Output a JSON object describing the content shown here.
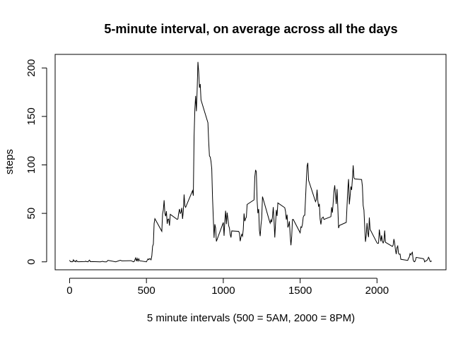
{
  "chart_data": {
    "type": "line",
    "title": "5-minute interval, on average across all the days",
    "xlabel": "5 minute intervals (500 = 5AM, 2000 = 8PM)",
    "ylabel": "steps",
    "xlim": [
      -94,
      2449
    ],
    "ylim": [
      -8.2,
      214
    ],
    "xticks": [
      0,
      500,
      1000,
      1500,
      2000
    ],
    "yticks": [
      0,
      50,
      100,
      150,
      200
    ],
    "grid": false,
    "series": [
      {
        "points": [
          [
            0,
            1.7
          ],
          [
            5,
            0.3
          ],
          [
            10,
            0.1
          ],
          [
            15,
            0.2
          ],
          [
            20,
            0.1
          ],
          [
            25,
            2.1
          ],
          [
            30,
            0.5
          ],
          [
            35,
            0.9
          ],
          [
            40,
            0
          ],
          [
            45,
            1.5
          ],
          [
            50,
            0.3
          ],
          [
            55,
            0.1
          ],
          [
            100,
            0.3
          ],
          [
            105,
            0.7
          ],
          [
            110,
            0.2
          ],
          [
            115,
            0.3
          ],
          [
            120,
            0
          ],
          [
            125,
            1.1
          ],
          [
            130,
            1.8
          ],
          [
            135,
            0.2
          ],
          [
            140,
            0.2
          ],
          [
            150,
            0.3
          ],
          [
            200,
            0
          ],
          [
            215,
            0.5
          ],
          [
            220,
            0.2
          ],
          [
            230,
            0
          ],
          [
            240,
            0
          ],
          [
            250,
            1.5
          ],
          [
            300,
            0
          ],
          [
            330,
            1.6
          ],
          [
            340,
            1
          ],
          [
            400,
            1.2
          ],
          [
            415,
            0
          ],
          [
            420,
            0.3
          ],
          [
            430,
            4.1
          ],
          [
            435,
            0.7
          ],
          [
            440,
            3.5
          ],
          [
            445,
            0.8
          ],
          [
            450,
            3.1
          ],
          [
            455,
            1.1
          ],
          [
            500,
            0
          ],
          [
            505,
            1.6
          ],
          [
            510,
            3
          ],
          [
            515,
            2.2
          ],
          [
            520,
            3.3
          ],
          [
            525,
            3
          ],
          [
            530,
            2.1
          ],
          [
            535,
            6.1
          ],
          [
            540,
            16
          ],
          [
            545,
            18.3
          ],
          [
            550,
            39.5
          ],
          [
            555,
            44.5
          ],
          [
            600,
            31.5
          ],
          [
            605,
            49.3
          ],
          [
            610,
            53.8
          ],
          [
            615,
            63.5
          ],
          [
            620,
            50
          ],
          [
            625,
            47.1
          ],
          [
            630,
            52.2
          ],
          [
            635,
            39.3
          ],
          [
            640,
            44
          ],
          [
            645,
            44.2
          ],
          [
            650,
            37.4
          ],
          [
            655,
            49
          ],
          [
            700,
            43.8
          ],
          [
            705,
            44.4
          ],
          [
            710,
            50.5
          ],
          [
            715,
            54.5
          ],
          [
            720,
            49.9
          ],
          [
            725,
            50.9
          ],
          [
            730,
            55.7
          ],
          [
            735,
            44.3
          ],
          [
            740,
            52.3
          ],
          [
            745,
            69.5
          ],
          [
            750,
            57.8
          ],
          [
            755,
            56.2
          ],
          [
            800,
            73.4
          ],
          [
            805,
            68.2
          ],
          [
            810,
            129.4
          ],
          [
            815,
            157.5
          ],
          [
            820,
            171.2
          ],
          [
            825,
            155.4
          ],
          [
            830,
            177.3
          ],
          [
            835,
            206.2
          ],
          [
            840,
            195.9
          ],
          [
            845,
            179.6
          ],
          [
            850,
            183.4
          ],
          [
            855,
            167
          ],
          [
            900,
            143.5
          ],
          [
            905,
            124
          ],
          [
            910,
            109.1
          ],
          [
            915,
            108.1
          ],
          [
            920,
            103.7
          ],
          [
            925,
            95.9
          ],
          [
            930,
            66.2
          ],
          [
            935,
            45.2
          ],
          [
            940,
            24.8
          ],
          [
            945,
            38.8
          ],
          [
            950,
            35
          ],
          [
            955,
            21.1
          ],
          [
            1000,
            40.6
          ],
          [
            1005,
            26.9
          ],
          [
            1010,
            42.4
          ],
          [
            1015,
            52.7
          ],
          [
            1020,
            38.9
          ],
          [
            1025,
            50.8
          ],
          [
            1030,
            44.3
          ],
          [
            1035,
            37.4
          ],
          [
            1040,
            34.7
          ],
          [
            1045,
            28.3
          ],
          [
            1050,
            25.1
          ],
          [
            1055,
            31.9
          ],
          [
            1100,
            31.4
          ],
          [
            1105,
            29.7
          ],
          [
            1110,
            21.3
          ],
          [
            1115,
            25.5
          ],
          [
            1120,
            28.4
          ],
          [
            1125,
            26.5
          ],
          [
            1130,
            33.4
          ],
          [
            1135,
            49.9
          ],
          [
            1140,
            42
          ],
          [
            1145,
            44.6
          ],
          [
            1150,
            46
          ],
          [
            1155,
            59.2
          ],
          [
            1200,
            63.9
          ],
          [
            1205,
            87.7
          ],
          [
            1210,
            94.8
          ],
          [
            1215,
            92.8
          ],
          [
            1220,
            63.4
          ],
          [
            1225,
            50.2
          ],
          [
            1230,
            54.5
          ],
          [
            1235,
            32.4
          ],
          [
            1240,
            26.5
          ],
          [
            1245,
            37.7
          ],
          [
            1250,
            45.1
          ],
          [
            1255,
            67.3
          ],
          [
            1300,
            42.3
          ],
          [
            1305,
            39.9
          ],
          [
            1310,
            43.3
          ],
          [
            1315,
            40.9
          ],
          [
            1320,
            46.2
          ],
          [
            1325,
            56.4
          ],
          [
            1330,
            42.8
          ],
          [
            1335,
            25.1
          ],
          [
            1340,
            39.9
          ],
          [
            1345,
            53.5
          ],
          [
            1350,
            47.3
          ],
          [
            1355,
            60.8
          ],
          [
            1400,
            55.8
          ],
          [
            1405,
            51.9
          ],
          [
            1410,
            43.6
          ],
          [
            1415,
            48.7
          ],
          [
            1420,
            35.5
          ],
          [
            1425,
            37.5
          ],
          [
            1430,
            41.8
          ],
          [
            1435,
            27.5
          ],
          [
            1440,
            17.1
          ],
          [
            1445,
            26.1
          ],
          [
            1450,
            43.6
          ],
          [
            1455,
            43.8
          ],
          [
            1500,
            30
          ],
          [
            1505,
            36.1
          ],
          [
            1510,
            35.5
          ],
          [
            1515,
            38.8
          ],
          [
            1520,
            46
          ],
          [
            1525,
            47.8
          ],
          [
            1530,
            48.1
          ],
          [
            1535,
            65.3
          ],
          [
            1540,
            82.9
          ],
          [
            1545,
            98.7
          ],
          [
            1550,
            102.1
          ],
          [
            1555,
            84
          ],
          [
            1600,
            62.1
          ],
          [
            1605,
            64.1
          ],
          [
            1610,
            74.5
          ],
          [
            1615,
            63.2
          ],
          [
            1620,
            56.9
          ],
          [
            1625,
            59.8
          ],
          [
            1630,
            43.9
          ],
          [
            1635,
            38.6
          ],
          [
            1640,
            44.7
          ],
          [
            1645,
            45.5
          ],
          [
            1650,
            46.2
          ],
          [
            1655,
            43.7
          ],
          [
            1700,
            46.6
          ],
          [
            1705,
            56.3
          ],
          [
            1710,
            50.7
          ],
          [
            1715,
            61.2
          ],
          [
            1720,
            72.7
          ],
          [
            1725,
            78.9
          ],
          [
            1730,
            68.9
          ],
          [
            1735,
            59.7
          ],
          [
            1740,
            75.1
          ],
          [
            1745,
            56.5
          ],
          [
            1750,
            34.8
          ],
          [
            1755,
            37.5
          ],
          [
            1800,
            40.7
          ],
          [
            1805,
            58
          ],
          [
            1810,
            74.7
          ],
          [
            1815,
            85.3
          ],
          [
            1820,
            59.3
          ],
          [
            1825,
            67.8
          ],
          [
            1830,
            77.7
          ],
          [
            1835,
            74.2
          ],
          [
            1840,
            85.6
          ],
          [
            1845,
            99.5
          ],
          [
            1850,
            86.6
          ],
          [
            1855,
            85.6
          ],
          [
            1900,
            84.9
          ],
          [
            1905,
            77.8
          ],
          [
            1910,
            58
          ],
          [
            1915,
            53.4
          ],
          [
            1920,
            36.3
          ],
          [
            1925,
            20.7
          ],
          [
            1930,
            27.4
          ],
          [
            1935,
            40
          ],
          [
            1940,
            30.2
          ],
          [
            1945,
            25.5
          ],
          [
            1950,
            45.7
          ],
          [
            1955,
            33.5
          ],
          [
            2000,
            19.6
          ],
          [
            2005,
            19
          ],
          [
            2010,
            19.3
          ],
          [
            2015,
            33.3
          ],
          [
            2020,
            26.8
          ],
          [
            2025,
            21.2
          ],
          [
            2030,
            27.3
          ],
          [
            2035,
            21.3
          ],
          [
            2040,
            19.5
          ],
          [
            2045,
            21.3
          ],
          [
            2050,
            32.3
          ],
          [
            2055,
            20.2
          ],
          [
            2100,
            15.9
          ],
          [
            2105,
            17.2
          ],
          [
            2110,
            23.5
          ],
          [
            2115,
            19.2
          ],
          [
            2120,
            12.5
          ],
          [
            2125,
            8
          ],
          [
            2130,
            14.7
          ],
          [
            2135,
            16.3
          ],
          [
            2140,
            8.7
          ],
          [
            2145,
            7.8
          ],
          [
            2150,
            8.1
          ],
          [
            2155,
            2.6
          ],
          [
            2200,
            1.5
          ],
          [
            2205,
            3.7
          ],
          [
            2210,
            4.8
          ],
          [
            2215,
            8.5
          ],
          [
            2220,
            7.1
          ],
          [
            2225,
            8.7
          ],
          [
            2230,
            9.8
          ],
          [
            2235,
            2.2
          ],
          [
            2240,
            0.3
          ],
          [
            2245,
            0.1
          ],
          [
            2250,
            1.6
          ],
          [
            2255,
            4.6
          ],
          [
            2300,
            3.3
          ],
          [
            2305,
            2.8
          ],
          [
            2310,
            0
          ],
          [
            2315,
            0.8
          ],
          [
            2320,
            1
          ],
          [
            2325,
            1.6
          ],
          [
            2330,
            2.6
          ],
          [
            2335,
            4.7
          ],
          [
            2340,
            3.3
          ],
          [
            2345,
            0.6
          ],
          [
            2350,
            0.2
          ],
          [
            2355,
            1.1
          ]
        ]
      }
    ]
  }
}
